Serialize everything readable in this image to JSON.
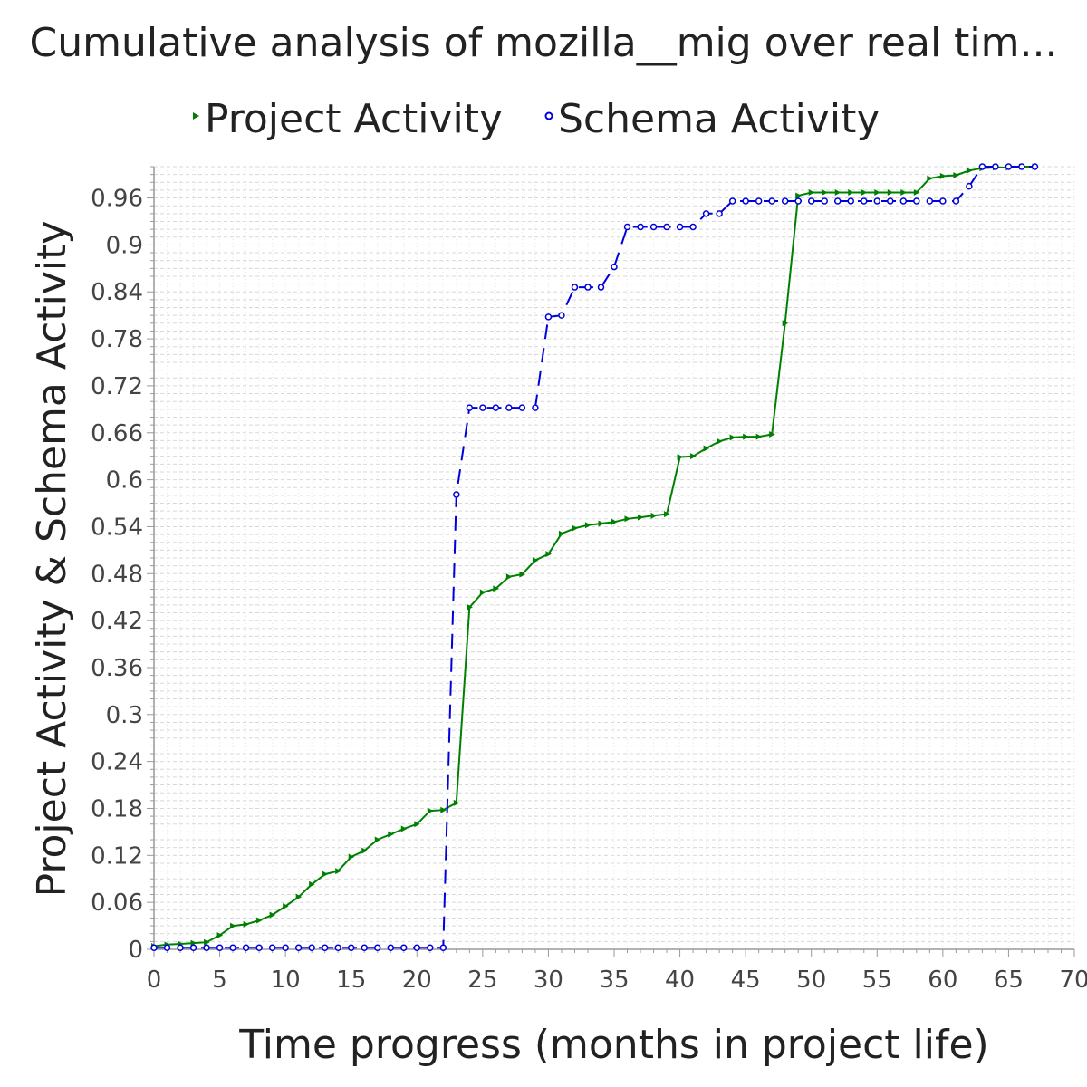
{
  "chart_data": {
    "type": "line",
    "title": "Cumulative analysis of mozilla__mig over real tim...",
    "xlabel": "Time progress (months in project life)",
    "ylabel": "Project Activity & Schema Activity",
    "xlim": [
      0,
      70
    ],
    "ylim": [
      0,
      1.0
    ],
    "x_ticks": [
      "0",
      "5",
      "10",
      "15",
      "20",
      "25",
      "30",
      "35",
      "40",
      "45",
      "50",
      "55",
      "60",
      "65",
      "70"
    ],
    "y_ticks": [
      "0",
      "0.06",
      "0.12",
      "0.18",
      "0.24",
      "0.3",
      "0.36",
      "0.42",
      "0.48",
      "0.54",
      "0.6",
      "0.66",
      "0.72",
      "0.78",
      "0.84",
      "0.9",
      "0.96"
    ],
    "grid": true,
    "legend_position": "top",
    "series": [
      {
        "name": "Project Activity",
        "color": "#008000",
        "line_style": "solid",
        "marker": "triangle-right",
        "x": [
          0,
          1,
          2,
          3,
          4,
          5,
          6,
          7,
          8,
          9,
          10,
          11,
          12,
          13,
          14,
          15,
          16,
          17,
          18,
          19,
          20,
          21,
          22,
          23,
          24,
          25,
          26,
          27,
          28,
          29,
          30,
          31,
          32,
          33,
          34,
          35,
          36,
          37,
          38,
          39,
          40,
          41,
          42,
          43,
          44,
          45,
          46,
          47,
          48,
          49,
          50,
          51,
          52,
          53,
          54,
          55,
          56,
          57,
          58,
          59,
          60,
          61,
          62,
          63,
          64,
          65,
          66,
          67
        ],
        "y": [
          0.004,
          0.006,
          0.007,
          0.008,
          0.009,
          0.018,
          0.03,
          0.032,
          0.037,
          0.044,
          0.055,
          0.067,
          0.083,
          0.096,
          0.1,
          0.118,
          0.126,
          0.14,
          0.147,
          0.154,
          0.16,
          0.177,
          0.178,
          0.187,
          0.437,
          0.456,
          0.461,
          0.476,
          0.479,
          0.497,
          0.505,
          0.531,
          0.538,
          0.542,
          0.544,
          0.546,
          0.55,
          0.552,
          0.554,
          0.556,
          0.629,
          0.63,
          0.64,
          0.649,
          0.654,
          0.655,
          0.655,
          0.658,
          0.8,
          0.963,
          0.967,
          0.967,
          0.967,
          0.967,
          0.967,
          0.967,
          0.967,
          0.967,
          0.967,
          0.985,
          0.988,
          0.989,
          0.995,
          0.998,
          0.999,
          0.999,
          1.0,
          1.0
        ]
      },
      {
        "name": "Schema Activity",
        "color": "#0000dd",
        "line_style": "dashed",
        "marker": "circle",
        "x": [
          0,
          1,
          2,
          3,
          4,
          5,
          6,
          7,
          8,
          9,
          10,
          11,
          12,
          13,
          14,
          15,
          16,
          17,
          18,
          19,
          20,
          21,
          22,
          23,
          24,
          25,
          26,
          27,
          28,
          29,
          30,
          31,
          32,
          33,
          34,
          35,
          36,
          37,
          38,
          39,
          40,
          41,
          42,
          43,
          44,
          45,
          46,
          47,
          48,
          49,
          50,
          51,
          52,
          53,
          54,
          55,
          56,
          57,
          58,
          59,
          60,
          61,
          62,
          63,
          64,
          65,
          66,
          67
        ],
        "y": [
          0.002,
          0.002,
          0.002,
          0.002,
          0.002,
          0.002,
          0.002,
          0.002,
          0.002,
          0.002,
          0.002,
          0.002,
          0.002,
          0.002,
          0.002,
          0.002,
          0.002,
          0.002,
          0.002,
          0.002,
          0.002,
          0.002,
          0.002,
          0.581,
          0.692,
          0.692,
          0.692,
          0.692,
          0.692,
          0.692,
          0.808,
          0.81,
          0.846,
          0.846,
          0.846,
          0.872,
          0.923,
          0.923,
          0.923,
          0.923,
          0.923,
          0.923,
          0.94,
          0.94,
          0.956,
          0.956,
          0.956,
          0.956,
          0.956,
          0.956,
          0.956,
          0.956,
          0.956,
          0.956,
          0.956,
          0.956,
          0.956,
          0.956,
          0.956,
          0.956,
          0.956,
          0.956,
          0.975,
          1.0,
          1.0,
          1.0,
          1.0,
          1.0
        ]
      }
    ]
  }
}
